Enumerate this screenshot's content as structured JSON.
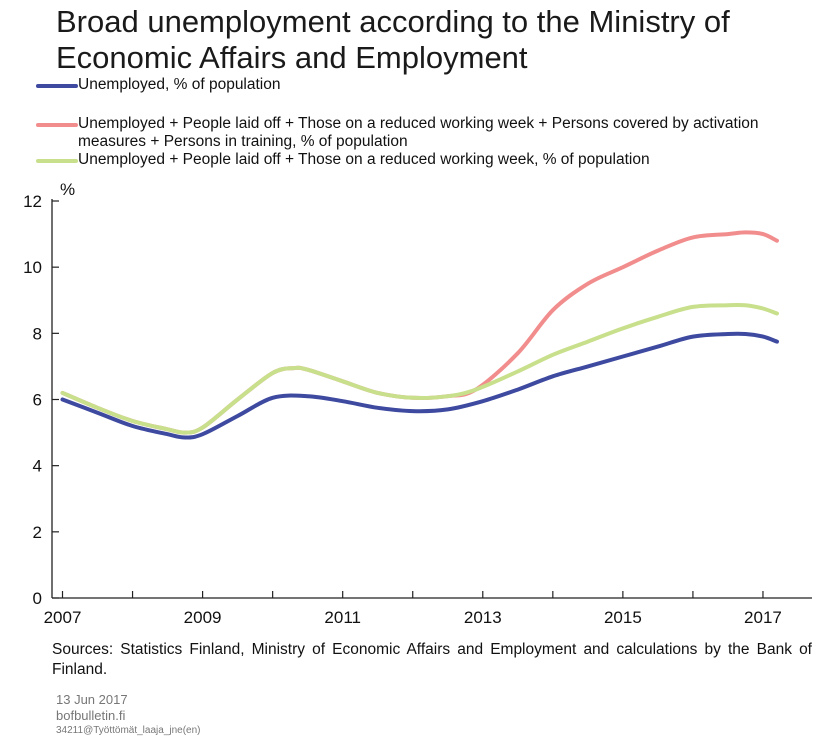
{
  "chart_data": {
    "type": "line",
    "title": "Broad unemployment according to the Ministry of Economic Affairs and Employment",
    "ylabel": "%",
    "ylim": [
      0,
      12
    ],
    "yticks": [
      "0",
      "2",
      "4",
      "6",
      "8",
      "10",
      "12"
    ],
    "xlim": [
      2006.85,
      2017.7
    ],
    "xticks": [
      "2007",
      "2009",
      "2011",
      "2013",
      "2015",
      "2017"
    ],
    "grid": false,
    "legend": "top",
    "series": [
      {
        "name": "Unemployed, % of population",
        "color": "#3e4aa0",
        "x": [
          2007.0,
          2007.5,
          2008.0,
          2008.5,
          2008.75,
          2009.0,
          2009.5,
          2010.0,
          2010.5,
          2011.0,
          2011.5,
          2012.0,
          2012.5,
          2013.0,
          2013.5,
          2014.0,
          2014.5,
          2015.0,
          2015.5,
          2016.0,
          2016.5,
          2016.75,
          2017.0,
          2017.2
        ],
        "values": [
          6.0,
          5.6,
          5.2,
          4.95,
          4.85,
          4.95,
          5.5,
          6.05,
          6.1,
          5.95,
          5.75,
          5.65,
          5.7,
          5.95,
          6.3,
          6.7,
          7.0,
          7.3,
          7.6,
          7.9,
          7.98,
          7.98,
          7.9,
          7.75
        ]
      },
      {
        "name": "Unemployed + People laid off + Those on a reduced working week + Persons covered by activation measures + Persons in training, % of population",
        "color": "#f28d8d",
        "x": [
          2007.0,
          2007.5,
          2008.0,
          2008.5,
          2008.75,
          2009.0,
          2009.5,
          2010.0,
          2010.3,
          2010.5,
          2011.0,
          2011.5,
          2012.0,
          2012.5,
          2012.9,
          2013.5,
          2014.0,
          2014.5,
          2015.0,
          2015.5,
          2016.0,
          2016.5,
          2016.75,
          2017.0,
          2017.2
        ],
        "values": [
          6.2,
          5.75,
          5.35,
          5.1,
          5.0,
          5.15,
          6.0,
          6.8,
          6.95,
          6.9,
          6.55,
          6.2,
          6.05,
          6.1,
          6.3,
          7.4,
          8.7,
          9.5,
          10.0,
          10.5,
          10.9,
          11.0,
          11.05,
          11.0,
          10.8
        ]
      },
      {
        "name": "Unemployed + People laid off + Those on a reduced working week, % of population",
        "color": "#c8df8c",
        "x": [
          2007.0,
          2007.5,
          2008.0,
          2008.5,
          2008.75,
          2009.0,
          2009.5,
          2010.0,
          2010.3,
          2010.5,
          2011.0,
          2011.5,
          2012.0,
          2012.5,
          2012.9,
          2013.5,
          2014.0,
          2014.5,
          2015.0,
          2015.5,
          2016.0,
          2016.5,
          2016.75,
          2017.0,
          2017.2
        ],
        "values": [
          6.2,
          5.75,
          5.35,
          5.1,
          5.0,
          5.15,
          6.0,
          6.8,
          6.95,
          6.9,
          6.55,
          6.2,
          6.05,
          6.1,
          6.3,
          6.85,
          7.35,
          7.75,
          8.15,
          8.5,
          8.8,
          8.85,
          8.85,
          8.75,
          8.6
        ]
      }
    ]
  },
  "legend": [
    {
      "label": "Unemployed, % of population",
      "color": "#3e4aa0"
    },
    {
      "label": "Unemployed + People laid off + Those on a reduced working week + Persons covered by activation measures + Persons in training, % of population",
      "color": "#f28d8d"
    },
    {
      "label": "Unemployed + People laid off + Those on a reduced working week, % of population",
      "color": "#c8df8c"
    }
  ],
  "sources": "Sources: Statistics Finland, Ministry of Economic Affairs and Employment and calculations by the Bank of Finland.",
  "footer": {
    "date": "13 Jun 2017",
    "site": "bofbulletin.fi",
    "code": "34211@Työttömät_laaja_jne(en)"
  }
}
